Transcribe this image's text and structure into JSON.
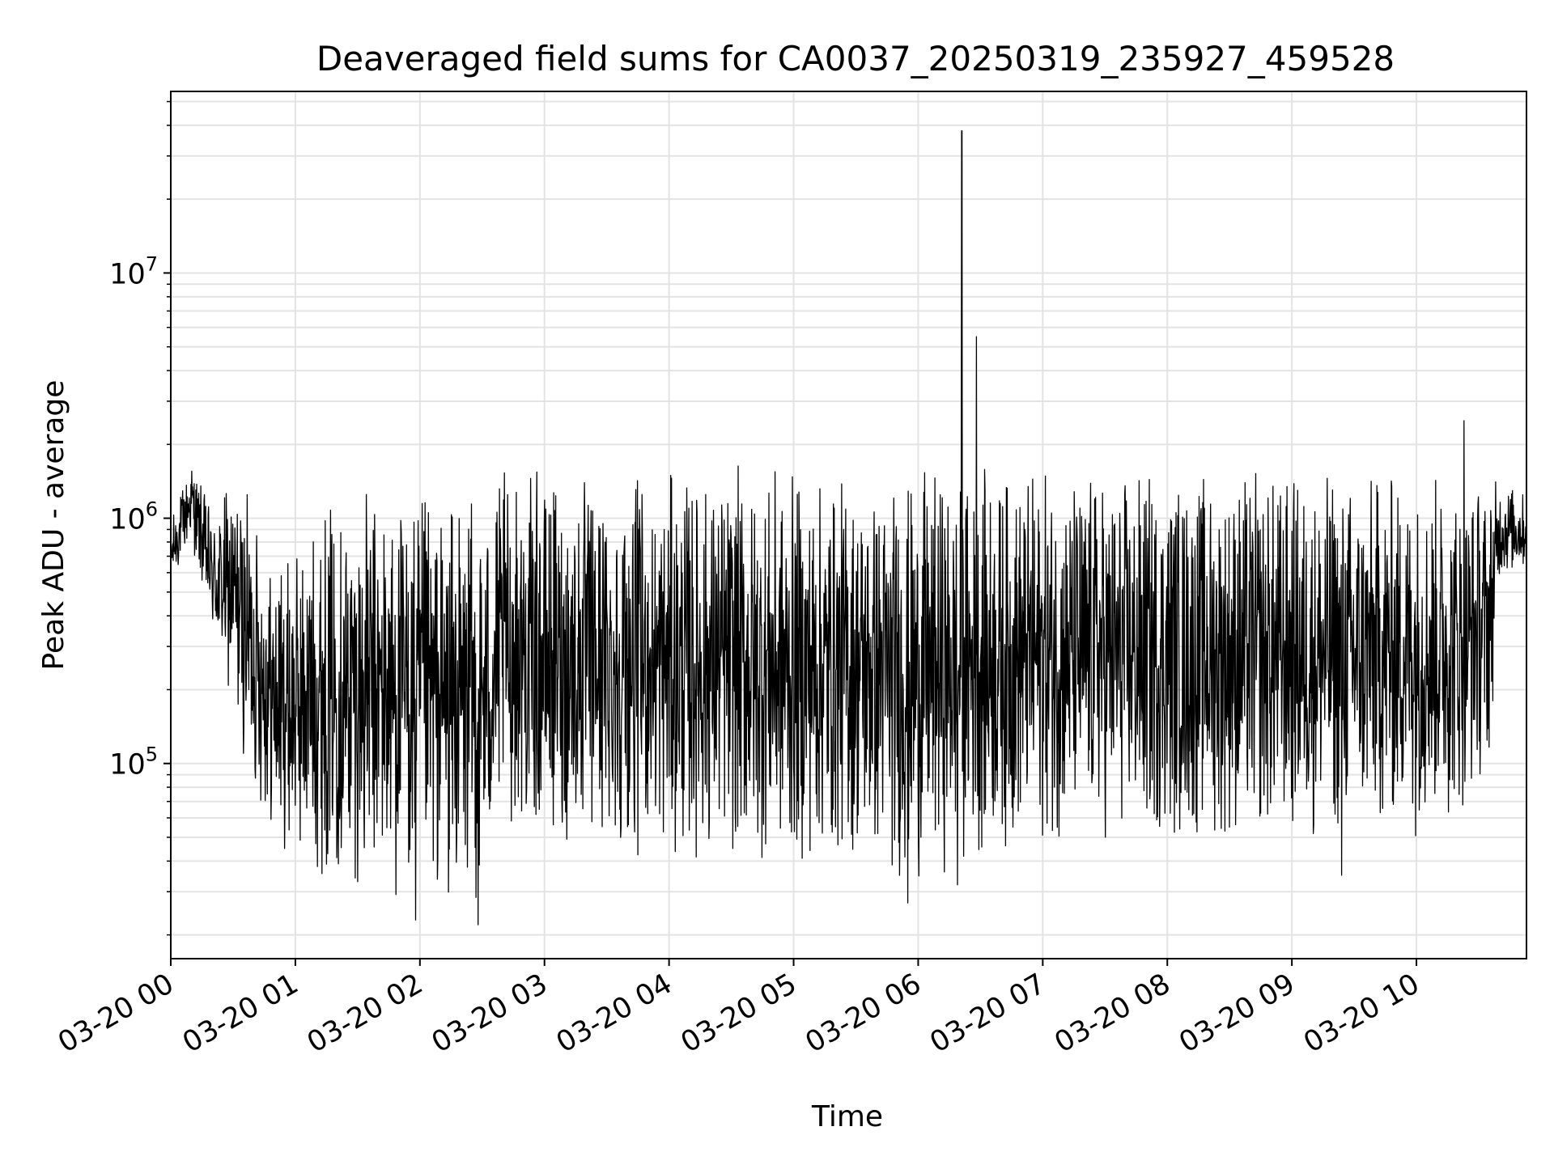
{
  "chart_data": {
    "type": "line",
    "title": "Deaveraged field sums for CA0037_20250319_235927_459528",
    "xlabel": "Time",
    "ylabel": "Peak ADU - average",
    "yscale": "log",
    "ylim": [
      16000,
      55000000
    ],
    "xlim": [
      "2025-03-20 00:00",
      "2025-03-20 10:53"
    ],
    "grid": true,
    "x_tick_labels": [
      "03-20 00",
      "03-20 01",
      "03-20 02",
      "03-20 03",
      "03-20 04",
      "03-20 05",
      "03-20 06",
      "03-20 07",
      "03-20 08",
      "03-20 09",
      "03-20 10"
    ],
    "y_tick_labels": [
      {
        "base": "10",
        "exp": "5",
        "value": 100000
      },
      {
        "base": "10",
        "exp": "6",
        "value": 1000000
      },
      {
        "base": "10",
        "exp": "7",
        "value": 10000000
      }
    ],
    "line_color": "#000000",
    "series": [
      {
        "envelope": [
          {
            "t": "2025-03-20 00:00",
            "low": 500000,
            "high": 1000000
          },
          {
            "t": "2025-03-20 00:10",
            "low": 800000,
            "high": 1800000
          },
          {
            "t": "2025-03-20 00:20",
            "low": 300000,
            "high": 1100000
          },
          {
            "t": "2025-03-20 00:30",
            "low": 150000,
            "high": 1600000
          },
          {
            "t": "2025-03-20 00:40",
            "low": 70000,
            "high": 1200000
          },
          {
            "t": "2025-03-20 00:50",
            "low": 45000,
            "high": 700000
          },
          {
            "t": "2025-03-20 01:00",
            "low": 38000,
            "high": 800000
          },
          {
            "t": "2025-03-20 01:15",
            "low": 33000,
            "high": 1300000
          },
          {
            "t": "2025-03-20 01:30",
            "low": 30000,
            "high": 1400000
          },
          {
            "t": "2025-03-20 01:45",
            "low": 26000,
            "high": 1400000
          },
          {
            "t": "2025-03-20 02:00",
            "low": 25000,
            "high": 1300000
          },
          {
            "t": "2025-03-20 02:15",
            "low": 25000,
            "high": 1300000
          },
          {
            "t": "2025-03-20 02:30",
            "low": 24000,
            "high": 1300000
          },
          {
            "t": "2025-03-20 02:40",
            "low": 55000,
            "high": 1600000
          },
          {
            "t": "2025-03-20 03:00",
            "low": 45000,
            "high": 1600000
          },
          {
            "t": "2025-03-20 03:20",
            "low": 40000,
            "high": 1600000
          },
          {
            "t": "2025-03-20 03:40",
            "low": 42000,
            "high": 1500000
          },
          {
            "t": "2025-03-20 04:00",
            "low": 38000,
            "high": 1600000
          },
          {
            "t": "2025-03-20 04:30",
            "low": 38000,
            "high": 1700000
          },
          {
            "t": "2025-03-20 05:00",
            "low": 36000,
            "high": 1600000
          },
          {
            "t": "2025-03-20 05:30",
            "low": 38000,
            "high": 1600000
          },
          {
            "t": "2025-03-20 05:55",
            "low": 30000,
            "high": 1600000
          },
          {
            "t": "2025-03-20 06:30",
            "low": 40000,
            "high": 1700000
          },
          {
            "t": "2025-03-20 07:00",
            "low": 45000,
            "high": 1700000
          },
          {
            "t": "2025-03-20 07:30",
            "low": 45000,
            "high": 1700000
          },
          {
            "t": "2025-03-20 08:00",
            "low": 45000,
            "high": 1700000
          },
          {
            "t": "2025-03-20 08:30",
            "low": 45000,
            "high": 1700000
          },
          {
            "t": "2025-03-20 09:00",
            "low": 45000,
            "high": 1700000
          },
          {
            "t": "2025-03-20 09:30",
            "low": 45000,
            "high": 1700000
          },
          {
            "t": "2025-03-20 10:00",
            "low": 50000,
            "high": 1700000
          },
          {
            "t": "2025-03-20 10:20",
            "low": 55000,
            "high": 1700000
          },
          {
            "t": "2025-03-20 10:35",
            "low": 90000,
            "high": 1600000
          },
          {
            "t": "2025-03-20 10:40",
            "low": 550000,
            "high": 1500000
          },
          {
            "t": "2025-03-20 10:53",
            "low": 600000,
            "high": 1300000
          }
        ],
        "spikes": [
          {
            "t": "2025-03-20 06:21",
            "value": 38000000
          },
          {
            "t": "2025-03-20 06:28",
            "value": 5500000
          },
          {
            "t": "2025-03-20 10:23",
            "value": 2500000
          }
        ],
        "dips": [
          {
            "t": "2025-03-20 05:55",
            "value": 27000
          },
          {
            "t": "2025-03-20 06:19",
            "value": 32000
          },
          {
            "t": "2025-03-20 09:24",
            "value": 35000
          },
          {
            "t": "2025-03-20 02:28",
            "value": 22000
          },
          {
            "t": "2025-03-20 01:58",
            "value": 23000
          }
        ]
      }
    ]
  }
}
